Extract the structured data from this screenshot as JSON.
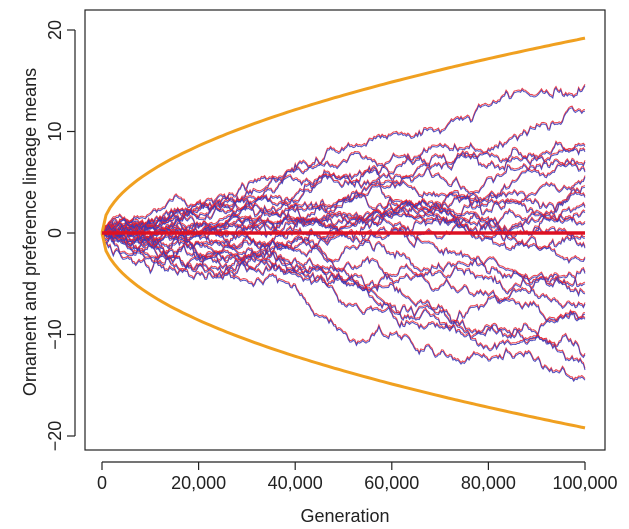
{
  "chart_data": {
    "type": "line",
    "title": "",
    "xlabel": "Generation",
    "ylabel": "Ornament and preference lineage means",
    "xlim": [
      0,
      100000
    ],
    "ylim": [
      -22,
      22
    ],
    "grid": false,
    "legend": "none",
    "x_ticks": [
      0,
      20000,
      40000,
      60000,
      80000,
      100000
    ],
    "x_tick_labels": [
      "0",
      "20,000",
      "40,000",
      "60,000",
      "80,000",
      "100,000"
    ],
    "y_ticks": [
      -20,
      -10,
      0,
      10,
      20
    ],
    "y_tick_labels": [
      "−20",
      "−10",
      "0",
      "10",
      "20"
    ],
    "lineage_endpoints": [
      14.5,
      12.0,
      8.5,
      8.0,
      7.0,
      6.0,
      5.5,
      4.5,
      3.5,
      2.5,
      2.0,
      1.0,
      -0.5,
      -1.5,
      -2.5,
      -4.0,
      -5.0,
      -6.0,
      -7.0,
      -8.0,
      -8.5,
      -12.0,
      -13.5,
      -14.5
    ],
    "mean_line": {
      "x": [
        0,
        100000
      ],
      "y": [
        0,
        0
      ]
    },
    "envelope": {
      "upper": {
        "x": [
          0,
          2000,
          5000,
          10000,
          20000,
          30000,
          40000,
          50000,
          60000,
          70000,
          80000,
          90000,
          100000
        ],
        "y": [
          0,
          2.7,
          4.3,
          6.1,
          8.6,
          10.5,
          12.1,
          13.6,
          14.9,
          16.1,
          17.2,
          18.2,
          19.2
        ]
      },
      "lower": {
        "x": [
          0,
          2000,
          5000,
          10000,
          20000,
          30000,
          40000,
          50000,
          60000,
          70000,
          80000,
          90000,
          100000
        ],
        "y": [
          0,
          -2.7,
          -4.3,
          -6.1,
          -8.6,
          -10.5,
          -12.1,
          -13.6,
          -14.9,
          -16.1,
          -17.2,
          -18.2,
          -19.2
        ]
      }
    },
    "colors": {
      "ornament": "#3a3ab8",
      "preference": "#e8202a",
      "envelope": "#f0a020",
      "mean": "#dd1122",
      "axis": "#222222"
    }
  }
}
